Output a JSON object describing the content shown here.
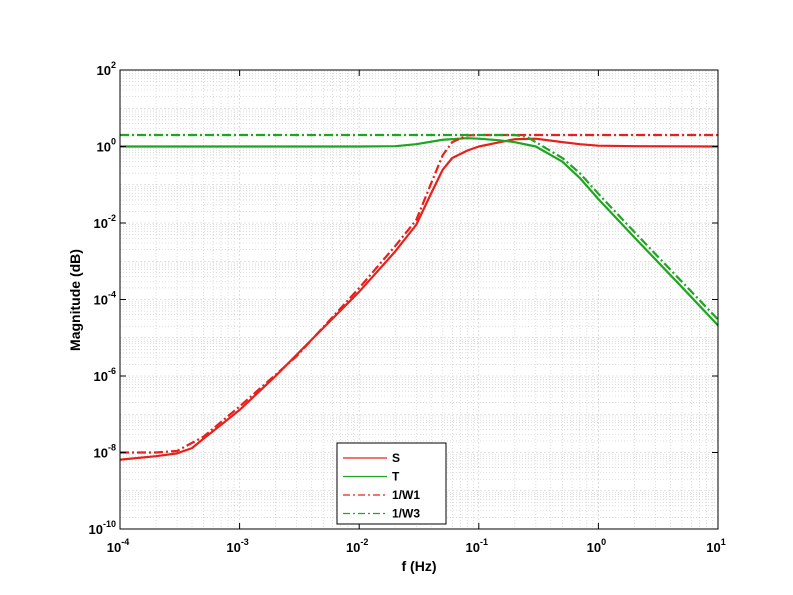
{
  "chart_data": {
    "type": "line",
    "xlabel": "f (Hz)",
    "ylabel": "Magnitude (dB)",
    "x_scale": "log",
    "y_scale": "log",
    "xlim": [
      0.0001,
      10
    ],
    "ylim": [
      1e-10,
      100
    ],
    "x_ticks": [
      {
        "base": "10",
        "exp": "-4"
      },
      {
        "base": "10",
        "exp": "-3"
      },
      {
        "base": "10",
        "exp": "-2"
      },
      {
        "base": "10",
        "exp": "-1"
      },
      {
        "base": "10",
        "exp": "0"
      },
      {
        "base": "10",
        "exp": "1"
      }
    ],
    "y_ticks": [
      {
        "base": "10",
        "exp": "-10"
      },
      {
        "base": "10",
        "exp": "-8"
      },
      {
        "base": "10",
        "exp": "-6"
      },
      {
        "base": "10",
        "exp": "-4"
      },
      {
        "base": "10",
        "exp": "-2"
      },
      {
        "base": "10",
        "exp": "0"
      },
      {
        "base": "10",
        "exp": "2"
      }
    ],
    "grid": true,
    "minor_grid": true,
    "legend_position": "bottom-center",
    "series": [
      {
        "name": "S",
        "color": "#e8201b",
        "style": "solid",
        "points": [
          [
            0.0001,
            6.5e-09
          ],
          [
            0.0002,
            8e-09
          ],
          [
            0.0003,
            9.5e-09
          ],
          [
            0.0004,
            1.3e-08
          ],
          [
            0.0005,
            2.3e-08
          ],
          [
            0.0007,
            5.3e-08
          ],
          [
            0.001,
            1.3e-07
          ],
          [
            0.002,
            1e-06
          ],
          [
            0.005,
            1.8e-05
          ],
          [
            0.01,
            0.00016
          ],
          [
            0.02,
            0.0018
          ],
          [
            0.03,
            0.009
          ],
          [
            0.04,
            0.06
          ],
          [
            0.05,
            0.25
          ],
          [
            0.06,
            0.5
          ],
          [
            0.08,
            0.78
          ],
          [
            0.1,
            1.0
          ],
          [
            0.15,
            1.3
          ],
          [
            0.2,
            1.55
          ],
          [
            0.3,
            1.6
          ],
          [
            0.5,
            1.3
          ],
          [
            0.7,
            1.15
          ],
          [
            1,
            1.05
          ],
          [
            2,
            1.02
          ],
          [
            10,
            1.0
          ]
        ]
      },
      {
        "name": "T",
        "color": "#1fa51f",
        "style": "solid",
        "points": [
          [
            0.0001,
            1.0
          ],
          [
            0.01,
            1.0
          ],
          [
            0.02,
            1.02
          ],
          [
            0.03,
            1.15
          ],
          [
            0.05,
            1.5
          ],
          [
            0.08,
            1.65
          ],
          [
            0.1,
            1.6
          ],
          [
            0.15,
            1.45
          ],
          [
            0.2,
            1.3
          ],
          [
            0.3,
            1.0
          ],
          [
            0.5,
            0.4
          ],
          [
            0.7,
            0.15
          ],
          [
            1,
            0.042
          ],
          [
            2,
            0.0042
          ],
          [
            5,
            0.00021
          ],
          [
            10,
            2.1e-05
          ]
        ]
      },
      {
        "name": "1/W1",
        "color": "#e8201b",
        "style": "dashdot",
        "points": [
          [
            0.0001,
            1e-08
          ],
          [
            0.0002,
            1e-08
          ],
          [
            0.0003,
            1.1e-08
          ],
          [
            0.0005,
            2.6e-08
          ],
          [
            0.001,
            1.6e-07
          ],
          [
            0.003,
            3.3e-06
          ],
          [
            0.01,
            0.0002
          ],
          [
            0.02,
            0.0025
          ],
          [
            0.03,
            0.012
          ],
          [
            0.04,
            0.11
          ],
          [
            0.05,
            0.6
          ],
          [
            0.06,
            1.3
          ],
          [
            0.08,
            1.95
          ],
          [
            0.1,
            2.0
          ],
          [
            10,
            2.0
          ]
        ]
      },
      {
        "name": "1/W3",
        "color": "#1fa51f",
        "style": "dashdot",
        "points": [
          [
            0.0001,
            2.0
          ],
          [
            0.2,
            2.0
          ],
          [
            0.25,
            1.8
          ],
          [
            0.3,
            1.3
          ],
          [
            0.5,
            0.5
          ],
          [
            0.7,
            0.2
          ],
          [
            1,
            0.058
          ],
          [
            2,
            0.0058
          ],
          [
            5,
            0.00029
          ],
          [
            10,
            3e-05
          ]
        ]
      }
    ]
  }
}
